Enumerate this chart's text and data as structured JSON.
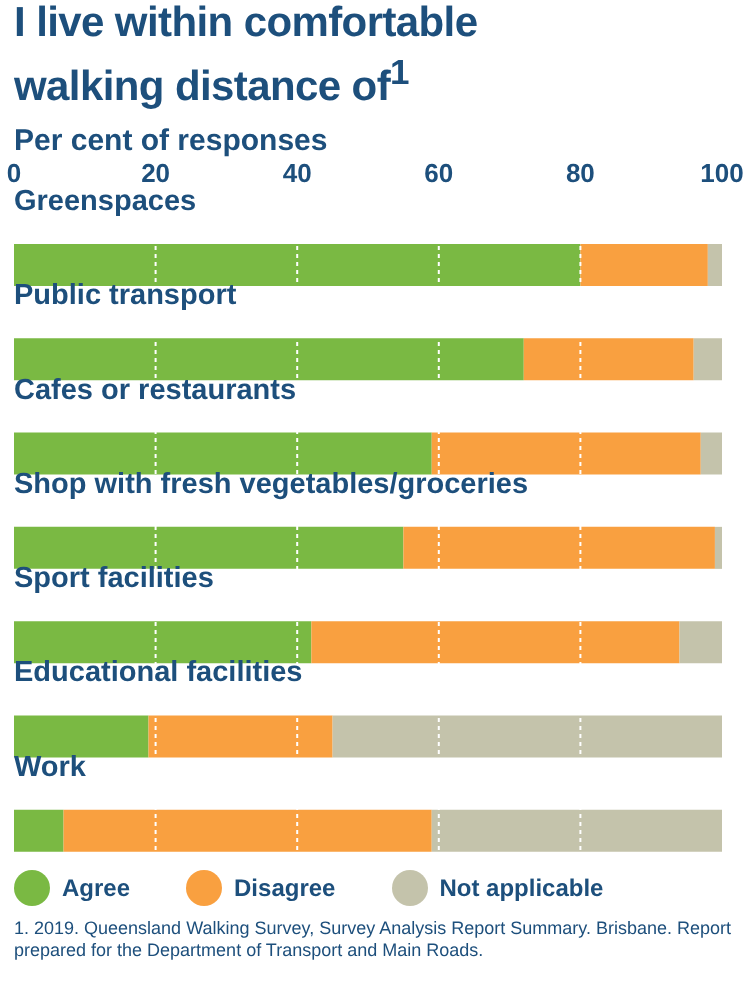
{
  "chart_data": {
    "type": "bar",
    "orientation": "horizontal",
    "stacked": true,
    "title": "I live within comfortable walking distance of$^{1}$",
    "xlabel": "Per cent of responses",
    "categories": [
      "Greenspaces",
      "Public transport",
      "Cafes or restaurants",
      "Shop with fresh vegetables/groceries",
      "Sport facilities",
      "Educational facilities",
      "Work"
    ],
    "series": [
      {
        "name": "Agree",
        "color": "#7ab943",
        "values": [
          80,
          72,
          59,
          55,
          42,
          19,
          7
        ]
      },
      {
        "name": "Disagree",
        "color": "#f9a040",
        "values": [
          18,
          24,
          38,
          44,
          52,
          26,
          52
        ]
      },
      {
        "name": "Not applicable",
        "color": "#c4c3ab",
        "values": [
          2,
          4,
          3,
          1,
          6,
          55,
          41
        ]
      }
    ],
    "xlim": [
      0,
      100
    ],
    "xticks": [
      0,
      20,
      40,
      60,
      80,
      100
    ],
    "grid": "x",
    "legend": "bottom",
    "annotations": [
      "1. 2019. Queensland Walking Survey, Survey Analysis Report Summary. Brisbane. Report prepared for the Department of Transport and Main Roads."
    ]
  }
}
